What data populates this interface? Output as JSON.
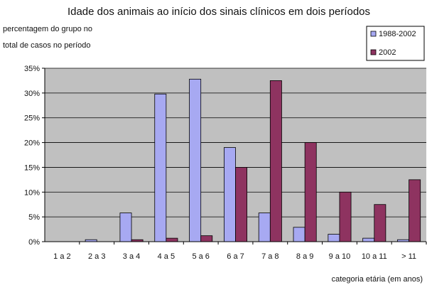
{
  "chart_data": {
    "type": "bar",
    "title": "Idade dos animais ao início dos sinais clínicos em dois períodos",
    "ylabel_lines": [
      "percentagem do grupo no",
      "total de casos no período"
    ],
    "xlabel": "categoria etária (em anos)",
    "categories": [
      "1 a 2",
      "2 a 3",
      "3 a 4",
      "4 a 5",
      "5 a 6",
      "6 a 7",
      "7 a 8",
      "8 a 9",
      "9 a 10",
      "10 a 11",
      "> 11"
    ],
    "ylim": [
      0,
      35
    ],
    "yticks": [
      0,
      5,
      10,
      15,
      20,
      25,
      30,
      35
    ],
    "ytick_labels": [
      "0%",
      "5%",
      "10%",
      "15%",
      "20%",
      "25%",
      "30%",
      "35%"
    ],
    "grid": true,
    "legend_position": "top-right",
    "series": [
      {
        "name": "1988-2002",
        "color": "#a7a9f2",
        "values": [
          0,
          0.4,
          5.8,
          29.8,
          32.8,
          19,
          5.8,
          2.9,
          1.5,
          0.7,
          0.4
        ]
      },
      {
        "name": "2002",
        "color": "#8e3360",
        "values": [
          0,
          0,
          0.4,
          0.7,
          1.2,
          15,
          32.5,
          20,
          10,
          7.5,
          12.5
        ]
      }
    ]
  }
}
